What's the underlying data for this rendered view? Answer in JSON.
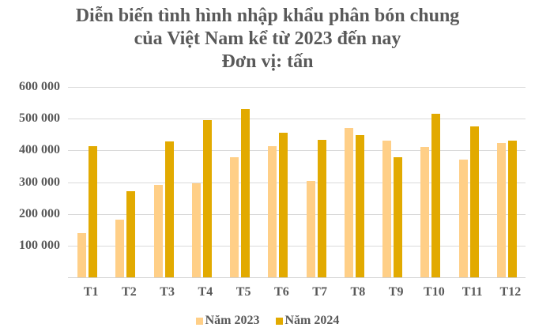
{
  "title": {
    "line1": "Diễn biến tình hình nhập khẩu phân bón chung",
    "line2": "của Việt Nam kể từ 2023 đến nay",
    "line3": "Đơn vị: tấn"
  },
  "colors": {
    "series_2023": "#FFCF87",
    "series_2024": "#E2AA00",
    "text": "#595959",
    "grid": "#D9D9D9"
  },
  "y_axis": {
    "ticks": [
      "600 000",
      "500 000",
      "400 000",
      "300 000",
      "200 000",
      "100 000"
    ]
  },
  "legend": {
    "items": [
      {
        "label": "Năm 2023",
        "color": "#FFCF87"
      },
      {
        "label": "Năm 2024",
        "color": "#E2AA00"
      }
    ]
  },
  "chart_data": {
    "type": "bar",
    "title": "Diễn biến tình hình nhập khẩu phân bón chung của Việt Nam kể từ 2023 đến nay — Đơn vị: tấn",
    "xlabel": "",
    "ylabel": "tấn",
    "categories": [
      "T1",
      "T2",
      "T3",
      "T4",
      "T5",
      "T6",
      "T7",
      "T8",
      "T9",
      "T10",
      "T11",
      "T12"
    ],
    "series": [
      {
        "name": "Năm 2023",
        "color": "#FFCF87",
        "values": [
          139000,
          182000,
          291000,
          296000,
          378000,
          413000,
          303000,
          470000,
          430000,
          410000,
          371000,
          423000
        ]
      },
      {
        "name": "Năm 2024",
        "color": "#E2AA00",
        "values": [
          413000,
          271000,
          428000,
          495000,
          530000,
          455000,
          433000,
          448000,
          378000,
          515000,
          475000,
          430000
        ]
      }
    ],
    "ylim": [
      0,
      600000
    ],
    "yticks": [
      100000,
      200000,
      300000,
      400000,
      500000,
      600000
    ],
    "grid": true,
    "legend_position": "bottom"
  }
}
